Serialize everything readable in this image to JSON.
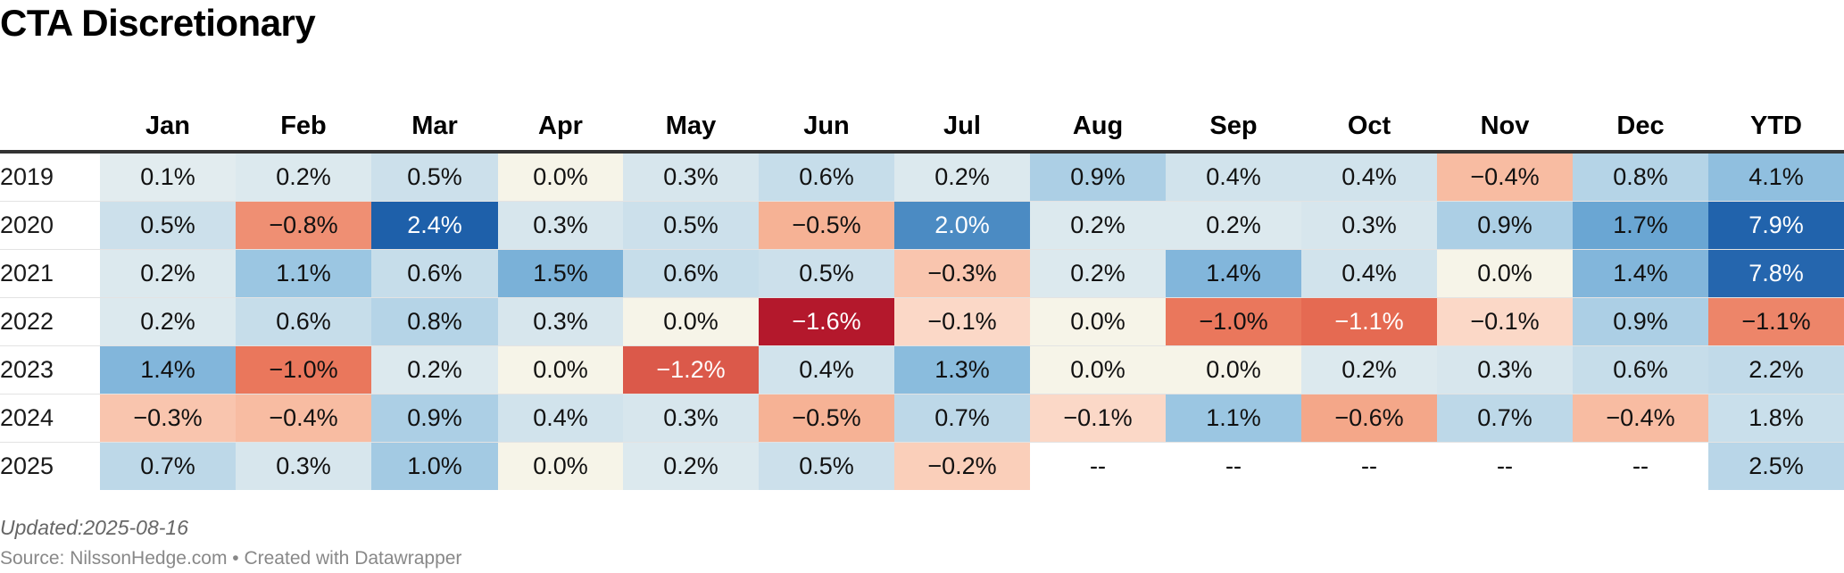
{
  "title": "CTA Discretionary",
  "updated": "Updated:2025-08-16",
  "source": "Source: NilssonHedge.com • Created with Datawrapper",
  "chart_data": {
    "type": "table",
    "title": "CTA Discretionary",
    "columns": [
      "Jan",
      "Feb",
      "Mar",
      "Apr",
      "May",
      "Jun",
      "Jul",
      "Aug",
      "Sep",
      "Oct",
      "Nov",
      "Dec",
      "YTD"
    ],
    "rows": [
      {
        "year": "2019",
        "values": [
          "0.1%",
          "0.2%",
          "0.5%",
          "0.0%",
          "0.3%",
          "0.6%",
          "0.2%",
          "0.9%",
          "0.4%",
          "0.4%",
          "−0.4%",
          "0.8%",
          "4.1%"
        ]
      },
      {
        "year": "2020",
        "values": [
          "0.5%",
          "−0.8%",
          "2.4%",
          "0.3%",
          "0.5%",
          "−0.5%",
          "2.0%",
          "0.2%",
          "0.2%",
          "0.3%",
          "0.9%",
          "1.7%",
          "7.9%"
        ]
      },
      {
        "year": "2021",
        "values": [
          "0.2%",
          "1.1%",
          "0.6%",
          "1.5%",
          "0.6%",
          "0.5%",
          "−0.3%",
          "0.2%",
          "1.4%",
          "0.4%",
          "0.0%",
          "1.4%",
          "7.8%"
        ]
      },
      {
        "year": "2022",
        "values": [
          "0.2%",
          "0.6%",
          "0.8%",
          "0.3%",
          "0.0%",
          "−1.6%",
          "−0.1%",
          "0.0%",
          "−1.0%",
          "−1.1%",
          "−0.1%",
          "0.9%",
          "−1.1%"
        ]
      },
      {
        "year": "2023",
        "values": [
          "1.4%",
          "−1.0%",
          "0.2%",
          "0.0%",
          "−1.2%",
          "0.4%",
          "1.3%",
          "0.0%",
          "0.0%",
          "0.2%",
          "0.3%",
          "0.6%",
          "2.2%"
        ]
      },
      {
        "year": "2024",
        "values": [
          "−0.3%",
          "−0.4%",
          "0.9%",
          "0.4%",
          "0.3%",
          "−0.5%",
          "0.7%",
          "−0.1%",
          "1.1%",
          "−0.6%",
          "0.7%",
          "−0.4%",
          "1.8%"
        ]
      },
      {
        "year": "2025",
        "values": [
          "0.7%",
          "0.3%",
          "1.0%",
          "0.0%",
          "0.2%",
          "0.5%",
          "−0.2%",
          "--",
          "--",
          "--",
          "--",
          "--",
          "2.5%"
        ]
      }
    ]
  }
}
